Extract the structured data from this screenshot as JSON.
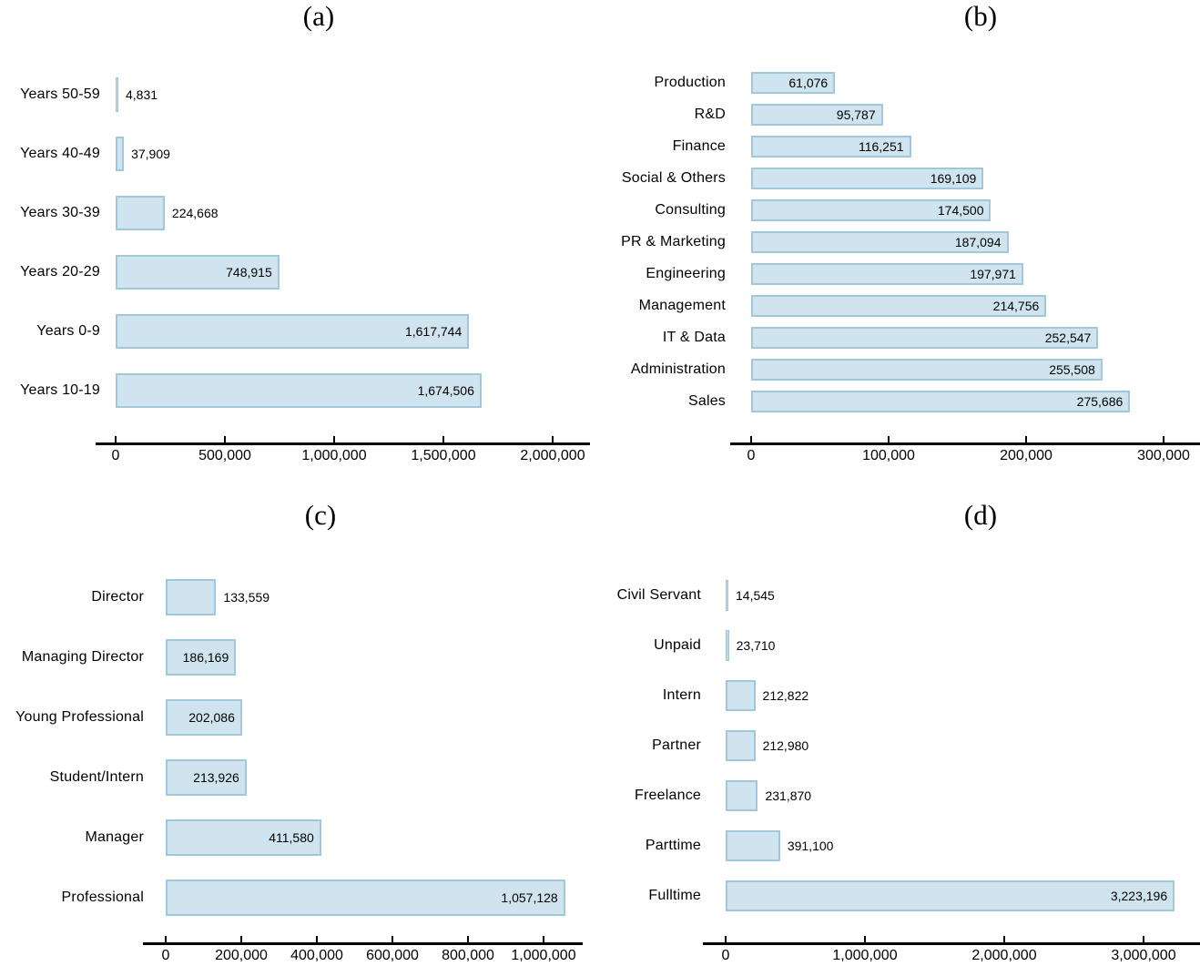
{
  "figure": {
    "background": "#ffffff",
    "bar_fill": "#cfe4ee",
    "bar_border": "#a0c8da",
    "axis_color": "#000000",
    "text_color": "#000000"
  },
  "chart_data": [
    {
      "id": "a",
      "type": "bar",
      "orientation": "horizontal",
      "title": "(a)",
      "categories": [
        "Years 50-59",
        "Years 40-49",
        "Years 30-39",
        "Years 20-29",
        "Years 0-9",
        "Years 10-19"
      ],
      "values": [
        4831,
        37909,
        224668,
        748915,
        1617744,
        1674506
      ],
      "value_labels": [
        "4,831",
        "37,909",
        "224,668",
        "748,915",
        "1,617,744",
        "1,674,506"
      ],
      "xticks": [
        0,
        500000,
        1000000,
        1500000,
        2000000
      ],
      "xtick_labels": [
        "0",
        "500,000",
        "1,000,000",
        "1,500,000",
        "2,000,000"
      ],
      "xlim": [
        0,
        2170000
      ],
      "grid": false,
      "legend": null
    },
    {
      "id": "b",
      "type": "bar",
      "orientation": "horizontal",
      "title": "(b)",
      "categories": [
        "Production",
        "R&D",
        "Finance",
        "Social & Others",
        "Consulting",
        "PR & Marketing",
        "Engineering",
        "Management",
        "IT & Data",
        "Administration",
        "Sales"
      ],
      "values": [
        61076,
        95787,
        116251,
        169109,
        174500,
        187094,
        197971,
        214756,
        252547,
        255508,
        275686
      ],
      "value_labels": [
        "61,076",
        "95,787",
        "116,251",
        "169,109",
        "174,500",
        "187,094",
        "197,971",
        "214,756",
        "252,547",
        "255,508",
        "275,686"
      ],
      "xticks": [
        0,
        100000,
        200000,
        300000
      ],
      "xtick_labels": [
        "0",
        "100,000",
        "200,000",
        "300,000"
      ],
      "xlim": [
        0,
        326000
      ],
      "grid": false,
      "legend": null
    },
    {
      "id": "c",
      "type": "bar",
      "orientation": "horizontal",
      "title": "(c)",
      "categories": [
        "Director",
        "Managing Director",
        "Young Professional",
        "Student/Intern",
        "Manager",
        "Professional"
      ],
      "values": [
        133559,
        186169,
        202086,
        213926,
        411580,
        1057128
      ],
      "value_labels": [
        "133,559",
        "186,169",
        "202,086",
        "213,926",
        "411,580",
        "1,057,128"
      ],
      "xticks": [
        0,
        200000,
        400000,
        600000,
        800000,
        1000000
      ],
      "xtick_labels": [
        "0",
        "200,000",
        "400,000",
        "600,000",
        "800,000",
        "1,000,000"
      ],
      "xlim": [
        0,
        1100000
      ],
      "grid": false,
      "legend": null
    },
    {
      "id": "d",
      "type": "bar",
      "orientation": "horizontal",
      "title": "(d)",
      "categories": [
        "Civil Servant",
        "Unpaid",
        "Intern",
        "Partner",
        "Freelance",
        "Parttime",
        "Fulltime"
      ],
      "values": [
        14545,
        23710,
        212822,
        212980,
        231870,
        391100,
        3223196
      ],
      "value_labels": [
        "14,545",
        "23,710",
        "212,822",
        "212,980",
        "231,870",
        "391,100",
        "3,223,196"
      ],
      "xticks": [
        0,
        1000000,
        2000000,
        3000000
      ],
      "xtick_labels": [
        "0",
        "1,000,000",
        "2,000,000",
        "3,000,000"
      ],
      "xlim": [
        0,
        3400000
      ],
      "grid": false,
      "legend": null
    }
  ]
}
